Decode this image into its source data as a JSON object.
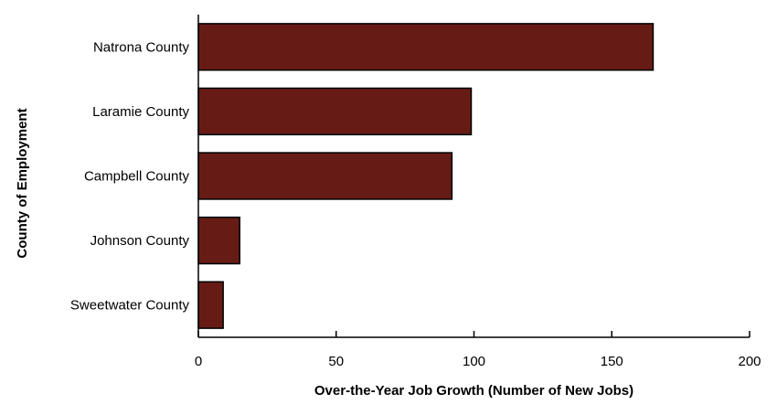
{
  "chart_data": {
    "type": "bar",
    "orientation": "horizontal",
    "categories": [
      "Natrona County",
      "Laramie County",
      "Campbell County",
      "Johnson County",
      "Sweetwater County"
    ],
    "values": [
      165,
      99,
      92,
      15,
      9
    ],
    "xlabel": "Over-the-Year Job Growth (Number of New Jobs)",
    "ylabel": "County of Employment",
    "xlim": [
      0,
      200
    ],
    "xticks": [
      0,
      50,
      100,
      150,
      200
    ],
    "grid": false,
    "legend": "none",
    "bar_color": "#661c14",
    "bar_edge_color": "#000000"
  }
}
